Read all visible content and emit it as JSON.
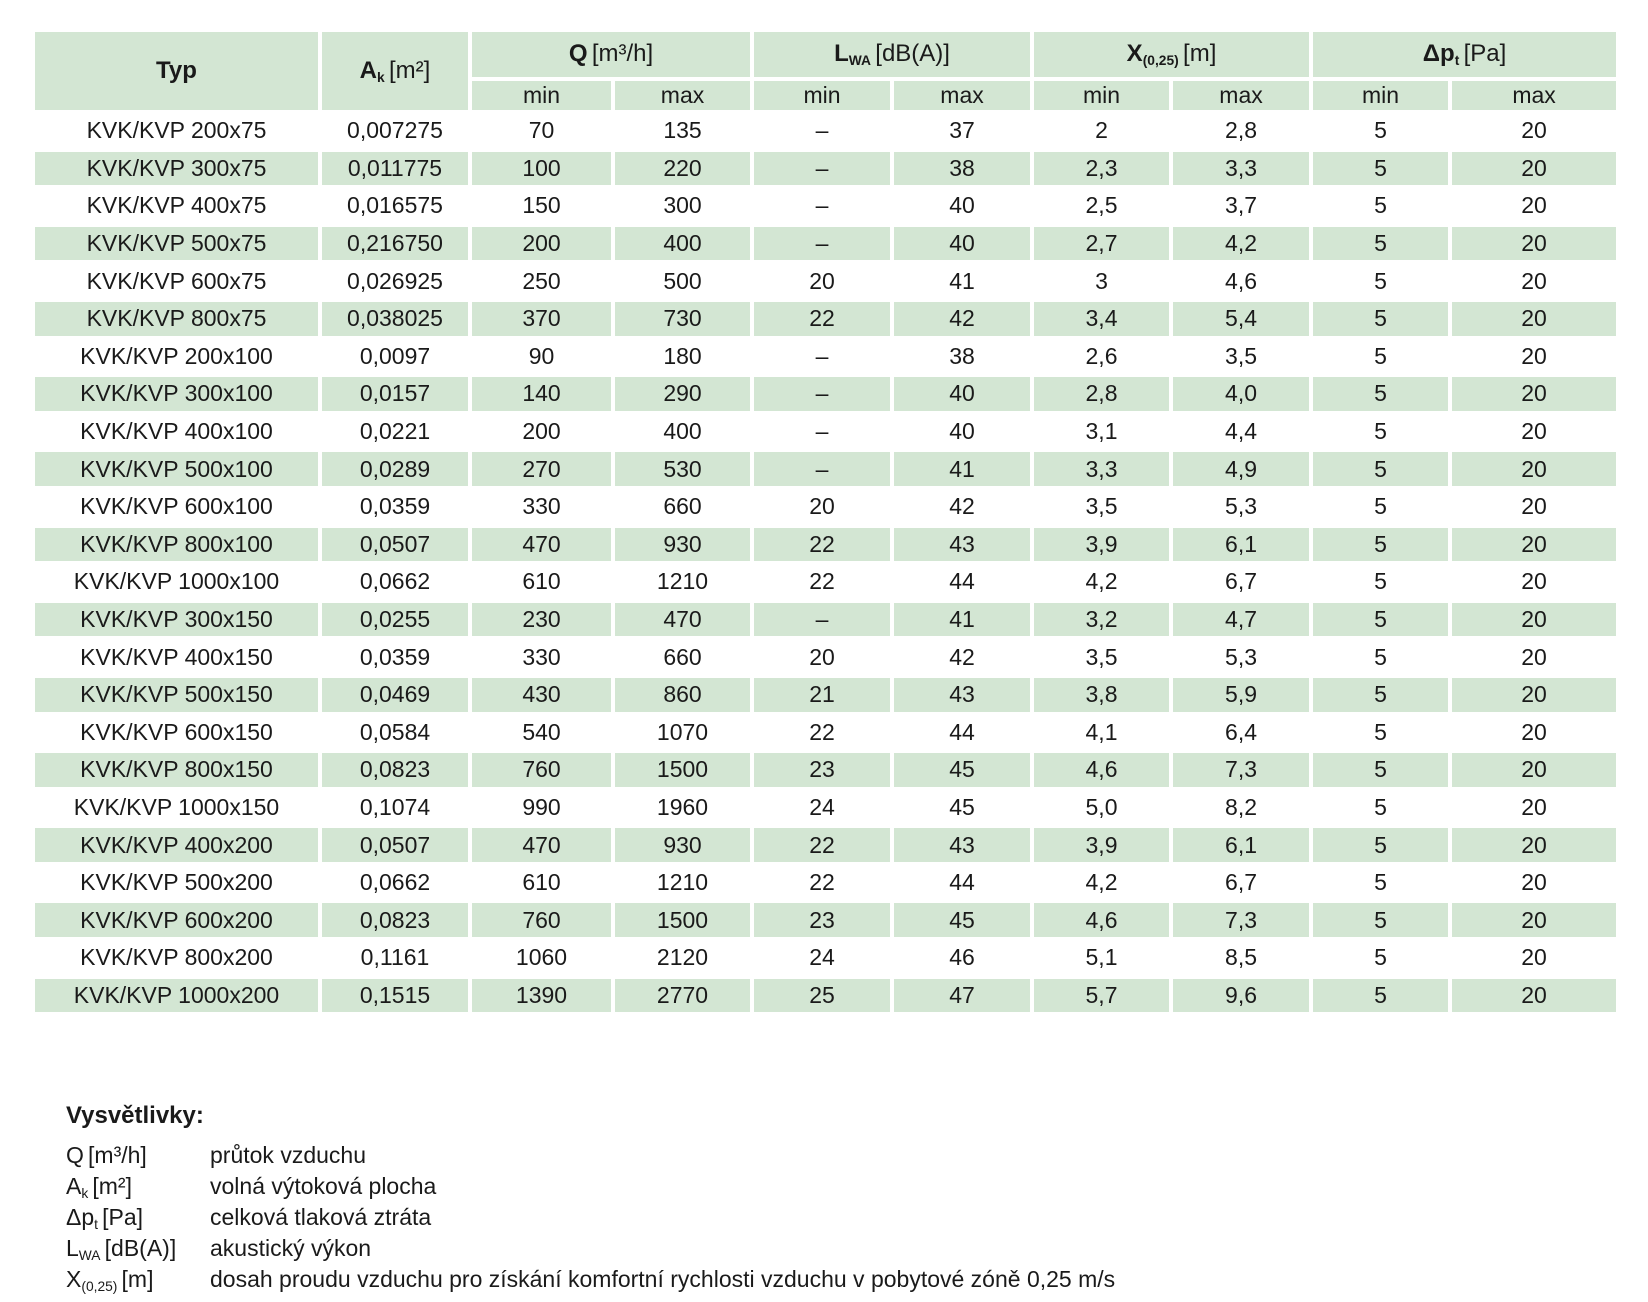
{
  "page": {
    "background": "#ffffff",
    "row_green": "#d3e6d3",
    "text_color": "#1a1a1a"
  },
  "table": {
    "header": {
      "typ_label": "Typ",
      "ak": {
        "sym": "A",
        "sub": "k",
        "unit": "[m²]"
      },
      "groups": [
        {
          "sym": "Q",
          "sub": "",
          "unit": "[m³/h]"
        },
        {
          "sym": "L",
          "sub": "WA",
          "unit": "[dB(A)]"
        },
        {
          "sym": "X",
          "sub": "(0,25)",
          "unit": "[m]"
        },
        {
          "sym": "Δp",
          "sub": "t",
          "unit": "[Pa]"
        }
      ],
      "sub_labels": [
        "min",
        "max"
      ]
    },
    "rows": [
      [
        "KVK/KVP 200x75",
        "0,007275",
        "70",
        "135",
        "–",
        "37",
        "2",
        "2,8",
        "5",
        "20"
      ],
      [
        "KVK/KVP 300x75",
        "0,011775",
        "100",
        "220",
        "–",
        "38",
        "2,3",
        "3,3",
        "5",
        "20"
      ],
      [
        "KVK/KVP 400x75",
        "0,016575",
        "150",
        "300",
        "–",
        "40",
        "2,5",
        "3,7",
        "5",
        "20"
      ],
      [
        "KVK/KVP 500x75",
        "0,216750",
        "200",
        "400",
        "–",
        "40",
        "2,7",
        "4,2",
        "5",
        "20"
      ],
      [
        "KVK/KVP 600x75",
        "0,026925",
        "250",
        "500",
        "20",
        "41",
        "3",
        "4,6",
        "5",
        "20"
      ],
      [
        "KVK/KVP 800x75",
        "0,038025",
        "370",
        "730",
        "22",
        "42",
        "3,4",
        "5,4",
        "5",
        "20"
      ],
      [
        "KVK/KVP 200x100",
        "0,0097",
        "90",
        "180",
        "–",
        "38",
        "2,6",
        "3,5",
        "5",
        "20"
      ],
      [
        "KVK/KVP 300x100",
        "0,0157",
        "140",
        "290",
        "–",
        "40",
        "2,8",
        "4,0",
        "5",
        "20"
      ],
      [
        "KVK/KVP 400x100",
        "0,0221",
        "200",
        "400",
        "–",
        "40",
        "3,1",
        "4,4",
        "5",
        "20"
      ],
      [
        "KVK/KVP 500x100",
        "0,0289",
        "270",
        "530",
        "–",
        "41",
        "3,3",
        "4,9",
        "5",
        "20"
      ],
      [
        "KVK/KVP 600x100",
        "0,0359",
        "330",
        "660",
        "20",
        "42",
        "3,5",
        "5,3",
        "5",
        "20"
      ],
      [
        "KVK/KVP 800x100",
        "0,0507",
        "470",
        "930",
        "22",
        "43",
        "3,9",
        "6,1",
        "5",
        "20"
      ],
      [
        "KVK/KVP 1000x100",
        "0,0662",
        "610",
        "1210",
        "22",
        "44",
        "4,2",
        "6,7",
        "5",
        "20"
      ],
      [
        "KVK/KVP 300x150",
        "0,0255",
        "230",
        "470",
        "–",
        "41",
        "3,2",
        "4,7",
        "5",
        "20"
      ],
      [
        "KVK/KVP 400x150",
        "0,0359",
        "330",
        "660",
        "20",
        "42",
        "3,5",
        "5,3",
        "5",
        "20"
      ],
      [
        "KVK/KVP 500x150",
        "0,0469",
        "430",
        "860",
        "21",
        "43",
        "3,8",
        "5,9",
        "5",
        "20"
      ],
      [
        "KVK/KVP 600x150",
        "0,0584",
        "540",
        "1070",
        "22",
        "44",
        "4,1",
        "6,4",
        "5",
        "20"
      ],
      [
        "KVK/KVP 800x150",
        "0,0823",
        "760",
        "1500",
        "23",
        "45",
        "4,6",
        "7,3",
        "5",
        "20"
      ],
      [
        "KVK/KVP 1000x150",
        "0,1074",
        "990",
        "1960",
        "24",
        "45",
        "5,0",
        "8,2",
        "5",
        "20"
      ],
      [
        "KVK/KVP 400x200",
        "0,0507",
        "470",
        "930",
        "22",
        "43",
        "3,9",
        "6,1",
        "5",
        "20"
      ],
      [
        "KVK/KVP 500x200",
        "0,0662",
        "610",
        "1210",
        "22",
        "44",
        "4,2",
        "6,7",
        "5",
        "20"
      ],
      [
        "KVK/KVP 600x200",
        "0,0823",
        "760",
        "1500",
        "23",
        "45",
        "4,6",
        "7,3",
        "5",
        "20"
      ],
      [
        "KVK/KVP 800x200",
        "0,1161",
        "1060",
        "2120",
        "24",
        "46",
        "5,1",
        "8,5",
        "5",
        "20"
      ],
      [
        "KVK/KVP 1000x200",
        "0,1515",
        "1390",
        "2770",
        "25",
        "47",
        "5,7",
        "9,6",
        "5",
        "20"
      ]
    ]
  },
  "legend": {
    "title": "Vysvětlivky:",
    "items": [
      {
        "sym": "Q",
        "sub": "",
        "unit": "[m³/h]",
        "desc": "průtok vzduchu"
      },
      {
        "sym": "A",
        "sub": "k",
        "unit": "[m²]",
        "desc": "volná výtoková plocha"
      },
      {
        "sym": "Δp",
        "sub": "t",
        "unit": "[Pa]",
        "desc": "celková tlaková ztráta"
      },
      {
        "sym": "L",
        "sub": "WA",
        "unit": "[dB(A)]",
        "desc": "akustický výkon"
      },
      {
        "sym": "X",
        "sub": "(0,25)",
        "unit": "[m]",
        "desc": "dosah proudu vzduchu pro získání komfortní rychlosti vzduchu v pobytové zóně 0,25 m/s"
      }
    ]
  }
}
